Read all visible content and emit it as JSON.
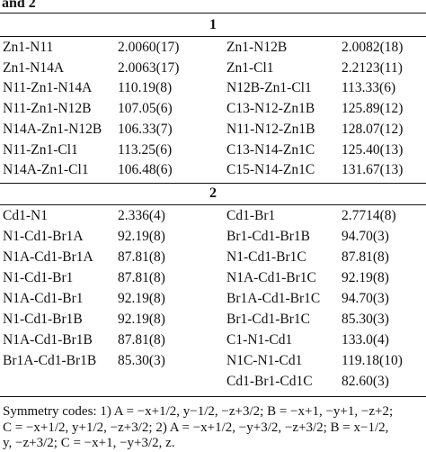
{
  "caption_fragment": "and 2",
  "sections": [
    {
      "label": "1",
      "rows": [
        [
          "Zn1-N11",
          "2.0060(17)",
          "Zn1-N12B",
          "2.0082(18)"
        ],
        [
          "Zn1-N14A",
          "2.0063(17)",
          "Zn1-Cl1",
          "2.2123(11)"
        ],
        [
          "N11-Zn1-N14A",
          "110.19(8)",
          "N12B-Zn1-Cl1",
          "113.33(6)"
        ],
        [
          "N11-Zn1-N12B",
          "107.05(6)",
          "C13-N12-Zn1B",
          "125.89(12)"
        ],
        [
          "N14A-Zn1-N12B",
          "106.33(7)",
          "N11-N12-Zn1B",
          "128.07(12)"
        ],
        [
          "N11-Zn1-Cl1",
          "113.25(6)",
          "C13-N14-Zn1C",
          "125.40(13)"
        ],
        [
          "N14A-Zn1-Cl1",
          "106.48(6)",
          "C15-N14-Zn1C",
          "131.67(13)"
        ]
      ]
    },
    {
      "label": "2",
      "rows": [
        [
          "Cd1-N1",
          "2.336(4)",
          "Cd1-Br1",
          "2.7714(8)"
        ],
        [
          "N1-Cd1-Br1A",
          "92.19(8)",
          "Br1-Cd1-Br1B",
          "94.70(3)"
        ],
        [
          "N1A-Cd1-Br1A",
          "87.81(8)",
          "N1-Cd1-Br1C",
          "87.81(8)"
        ],
        [
          "N1-Cd1-Br1",
          "87.81(8)",
          "N1A-Cd1-Br1C",
          "92.19(8)"
        ],
        [
          "N1A-Cd1-Br1",
          "92.19(8)",
          "Br1A-Cd1-Br1C",
          "94.70(3)"
        ],
        [
          "N1-Cd1-Br1B",
          "92.19(8)",
          "Br1-Cd1-Br1C",
          "85.30(3)"
        ],
        [
          "N1A-Cd1-Br1B",
          "87.81(8)",
          "C1-N1-Cd1",
          "133.0(4)"
        ],
        [
          "Br1A-Cd1-Br1B",
          "85.30(3)",
          "N1C-N1-Cd1",
          "119.18(10)"
        ],
        [
          "",
          "",
          "Cd1-Br1-Cd1C",
          "82.60(3)"
        ]
      ]
    }
  ],
  "footnote": {
    "line1": "Symmetry codes: 1) A = −x+1/2, y−1/2, −z+3/2; B = −x+1, −y+1, −z+2;",
    "line2": "C = −x+1/2, y+1/2, −z+3/2; 2) A = −x+1/2, −y+3/2, −z+3/2; B = x−1/2,",
    "line3": "y, −z+3/2; C = −x+1, −y+3/2, z."
  }
}
